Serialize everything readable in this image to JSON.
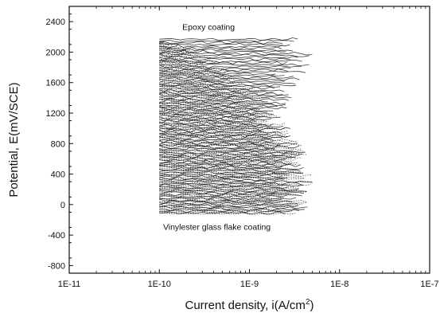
{
  "chart_data": {
    "type": "line",
    "title": "",
    "xlabel": "Current density, i(A/cm",
    "xlabel_superscript": "2",
    "xlabel_suffix": ")",
    "ylabel": "Potential, E(mV/SCE)",
    "x_scale": "log",
    "xlim": [
      1e-11,
      1e-07
    ],
    "ylim": [
      -900,
      2600
    ],
    "x_ticks": [
      1e-11,
      1e-10,
      1e-09,
      1e-08,
      1e-07
    ],
    "x_tick_labels": [
      "1E-11",
      "1E-10",
      "1E-9",
      "1E-8",
      "1E-7"
    ],
    "y_ticks": [
      -800,
      -400,
      0,
      400,
      800,
      1200,
      1600,
      2000,
      2400
    ],
    "y_tick_labels": [
      "-800",
      "-400",
      "0",
      "400",
      "800",
      "1200",
      "1600",
      "2000",
      "2400"
    ],
    "grid": false,
    "series": [
      {
        "line_style": "dotted",
        "color": "#1a1a1a",
        "x": [
          1e-10,
          2e-10,
          5e-10,
          1.5e-09,
          2.5e-09,
          5e-09
        ],
        "y": [
          2180,
          2100,
          1850,
          1500,
          1100,
          600
        ]
      },
      {
        "line_style": "solid",
        "color": "#1a1a1a",
        "x": [
          1e-10,
          3e-10,
          8e-10,
          2e-09,
          3.5e-09,
          5e-09
        ],
        "y": [
          -120,
          100,
          400,
          800,
          1400,
          1950
        ]
      }
    ],
    "annotations": [
      {
        "text": "Epoxy coating",
        "x": 1.8e-10,
        "y": 2290
      },
      {
        "text": "Vinylester glass flake coating",
        "x": 1.1e-10,
        "y": -330
      }
    ]
  }
}
